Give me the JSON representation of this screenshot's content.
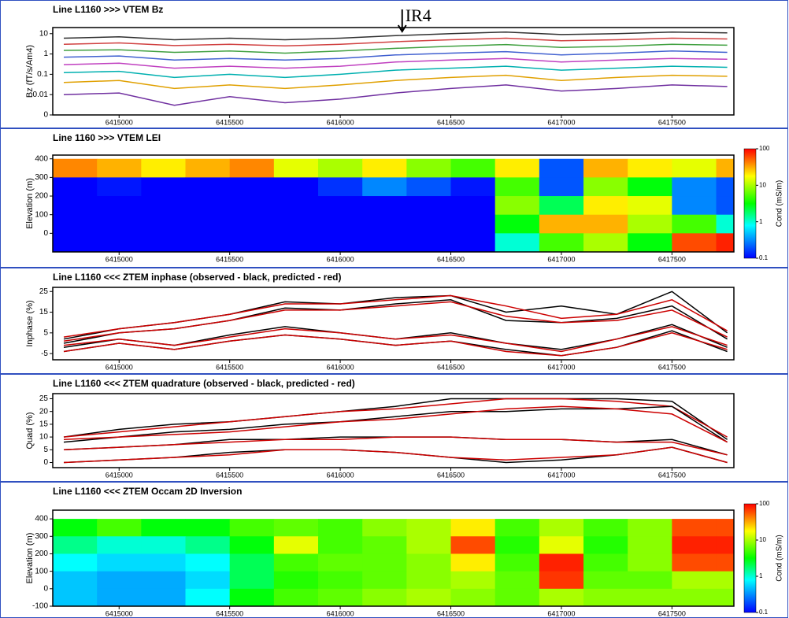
{
  "chart_data": [
    {
      "type": "line",
      "title": "Line L1160 >>> VTEM Bz",
      "y_label": "Bz (fT/s/Am4)",
      "log_y": true,
      "annotations": [
        {
          "text": "IR4",
          "x": 6416280
        }
      ],
      "x": [
        6414750,
        6415000,
        6415250,
        6415500,
        6415750,
        6416000,
        6416250,
        6416500,
        6416750,
        6417000,
        6417250,
        6417500,
        6417750
      ],
      "xlim": [
        6414700,
        6417780
      ],
      "xticks": [
        6415000,
        6415500,
        6416000,
        6416500,
        6417000,
        6417500
      ],
      "ylim": [
        0.001,
        20
      ],
      "yticks": [
        {
          "value": 0.001,
          "label": "0"
        },
        0.01,
        0.1,
        1,
        10
      ],
      "series": [
        {
          "color": "#303030",
          "values": [
            6,
            7,
            5,
            6,
            5,
            6,
            8,
            10,
            12,
            9,
            10,
            12,
            11
          ]
        },
        {
          "color": "#d04040",
          "values": [
            3,
            3.5,
            2.6,
            3,
            2.5,
            3,
            4,
            5,
            6,
            4.5,
            5,
            6,
            5.5
          ]
        },
        {
          "color": "#40a040",
          "values": [
            1.5,
            1.6,
            1.2,
            1.4,
            1.1,
            1.4,
            1.9,
            2.4,
            2.9,
            2.1,
            2.4,
            3,
            2.7
          ]
        },
        {
          "color": "#4060d0",
          "values": [
            0.7,
            0.8,
            0.5,
            0.6,
            0.5,
            0.6,
            0.9,
            1.1,
            1.3,
            0.9,
            1.1,
            1.4,
            1.2
          ]
        },
        {
          "color": "#c040c0",
          "values": [
            0.3,
            0.35,
            0.2,
            0.25,
            0.2,
            0.25,
            0.4,
            0.5,
            0.6,
            0.4,
            0.5,
            0.6,
            0.55
          ]
        },
        {
          "color": "#00b0b0",
          "values": [
            0.12,
            0.14,
            0.07,
            0.1,
            0.07,
            0.1,
            0.16,
            0.2,
            0.25,
            0.16,
            0.2,
            0.25,
            0.22
          ]
        },
        {
          "color": "#e0a000",
          "values": [
            0.04,
            0.05,
            0.02,
            0.03,
            0.02,
            0.03,
            0.05,
            0.07,
            0.09,
            0.05,
            0.07,
            0.09,
            0.08
          ]
        },
        {
          "color": "#7030a0",
          "values": [
            0.01,
            0.012,
            0.003,
            0.008,
            0.004,
            0.006,
            0.012,
            0.02,
            0.03,
            0.015,
            0.02,
            0.03,
            0.025
          ]
        }
      ]
    },
    {
      "type": "heatmap",
      "title": "Line 1160 >>> VTEM LEI",
      "y_label": "Elevation (m)",
      "colorbar_label": "Cond (mS/m)",
      "x": [
        6414800,
        6415000,
        6415200,
        6415400,
        6415600,
        6415800,
        6416000,
        6416200,
        6416400,
        6416600,
        6416800,
        6417000,
        6417200,
        6417400,
        6417600,
        6417800
      ],
      "y": [
        350,
        250,
        150,
        50,
        -50
      ],
      "xlim": [
        6414700,
        6417780
      ],
      "xticks": [
        6415000,
        6415500,
        6416000,
        6416500,
        6417000,
        6417500
      ],
      "ylim": [
        -100,
        420
      ],
      "yticks": [
        0,
        100,
        200,
        300,
        400
      ],
      "clim": [
        0.1,
        100
      ],
      "cticks": [
        0.1,
        1,
        10,
        100
      ],
      "values": [
        [
          40,
          30,
          20,
          30,
          40,
          15,
          10,
          20,
          8,
          5,
          20,
          0.2,
          30,
          20,
          15,
          30
        ],
        [
          0.1,
          0.12,
          0.1,
          0.1,
          0.1,
          0.1,
          0.15,
          0.3,
          0.2,
          0.12,
          5,
          0.2,
          8,
          3,
          0.3,
          0.2
        ],
        [
          0.1,
          0.1,
          0.1,
          0.1,
          0.1,
          0.1,
          0.1,
          0.1,
          0.1,
          0.1,
          8,
          2,
          20,
          15,
          0.3,
          0.2
        ],
        [
          0.1,
          0.1,
          0.1,
          0.1,
          0.1,
          0.1,
          0.1,
          0.1,
          0.1,
          0.1,
          3,
          30,
          30,
          10,
          5,
          1
        ],
        [
          0.1,
          0.1,
          0.1,
          0.1,
          0.1,
          0.1,
          0.1,
          0.1,
          0.1,
          0.1,
          1,
          5,
          10,
          3,
          60,
          80
        ]
      ]
    },
    {
      "type": "line",
      "title": "Line L1160 <<< ZTEM inphase (observed - black, predicted - red)",
      "y_label": "Inphase (%)",
      "x": [
        6414750,
        6415000,
        6415250,
        6415500,
        6415750,
        6416000,
        6416250,
        6416500,
        6416750,
        6417000,
        6417250,
        6417500,
        6417750
      ],
      "xlim": [
        6414700,
        6417780
      ],
      "xticks": [
        6415000,
        6415500,
        6416000,
        6416500,
        6417000,
        6417500
      ],
      "ylim": [
        -8,
        27
      ],
      "yticks": [
        -5,
        5,
        15,
        25
      ],
      "series": [
        {
          "color": "#000000",
          "values": [
            2,
            7,
            10,
            14,
            20,
            19,
            22,
            23,
            15,
            18,
            14,
            25,
            5
          ]
        },
        {
          "color": "#cc0000",
          "values": [
            3,
            7,
            10,
            14,
            19,
            19,
            21,
            23,
            18,
            12,
            14,
            21,
            6
          ]
        },
        {
          "color": "#000000",
          "values": [
            0,
            5,
            7,
            11,
            17,
            16,
            19,
            21,
            11,
            10,
            12,
            18,
            2
          ]
        },
        {
          "color": "#cc0000",
          "values": [
            1,
            5,
            7,
            11,
            16,
            16,
            18,
            20,
            13,
            10,
            11,
            16,
            3
          ]
        },
        {
          "color": "#000000",
          "values": [
            -2,
            2,
            -1,
            4,
            8,
            5,
            2,
            5,
            0,
            -3,
            2,
            9,
            -2
          ]
        },
        {
          "color": "#cc0000",
          "values": [
            -1,
            2,
            -1,
            3,
            7,
            5,
            2,
            4,
            0,
            -4,
            2,
            8,
            -1
          ]
        },
        {
          "color": "#000000",
          "values": [
            -4,
            0,
            -3,
            1,
            4,
            2,
            -1,
            1,
            -3,
            -6,
            -2,
            6,
            -4
          ]
        },
        {
          "color": "#cc0000",
          "values": [
            -4,
            0,
            -3,
            1,
            4,
            2,
            -1,
            1,
            -4,
            -6,
            -2,
            5,
            -3
          ]
        }
      ]
    },
    {
      "type": "line",
      "title": "Line L1160 <<< ZTEM quadrature (observed - black, predicted - red)",
      "y_label": "Quad (%)",
      "x": [
        6414750,
        6415000,
        6415250,
        6415500,
        6415750,
        6416000,
        6416250,
        6416500,
        6416750,
        6417000,
        6417250,
        6417500,
        6417750
      ],
      "xlim": [
        6414700,
        6417780
      ],
      "xticks": [
        6415000,
        6415500,
        6416000,
        6416500,
        6417000,
        6417500
      ],
      "ylim": [
        -2,
        27
      ],
      "yticks": [
        0,
        5,
        10,
        15,
        20,
        25
      ],
      "series": [
        {
          "color": "#000000",
          "values": [
            10,
            13,
            15,
            16,
            18,
            20,
            22,
            25,
            25,
            25,
            25,
            24,
            9
          ]
        },
        {
          "color": "#cc0000",
          "values": [
            10,
            12,
            14,
            16,
            18,
            20,
            21,
            23,
            25,
            25,
            24,
            22,
            10
          ]
        },
        {
          "color": "#000000",
          "values": [
            8,
            10,
            12,
            13,
            15,
            16,
            18,
            20,
            20,
            21,
            21,
            22,
            8
          ]
        },
        {
          "color": "#cc0000",
          "values": [
            9,
            10,
            11,
            12,
            14,
            16,
            17,
            19,
            21,
            22,
            21,
            19,
            8
          ]
        },
        {
          "color": "#000000",
          "values": [
            5,
            6,
            7,
            9,
            9,
            10,
            10,
            10,
            9,
            9,
            8,
            9,
            3
          ]
        },
        {
          "color": "#cc0000",
          "values": [
            5,
            6,
            7,
            8,
            9,
            9,
            10,
            10,
            9,
            9,
            8,
            8,
            3
          ]
        },
        {
          "color": "#000000",
          "values": [
            0,
            1,
            2,
            4,
            5,
            5,
            4,
            2,
            0,
            1,
            3,
            6,
            0
          ]
        },
        {
          "color": "#cc0000",
          "values": [
            0,
            1,
            2,
            3,
            5,
            5,
            4,
            2,
            1,
            2,
            3,
            6,
            0
          ]
        }
      ]
    },
    {
      "type": "heatmap",
      "title": "Line L1160 <<< ZTEM Occam 2D Inversion",
      "y_label": "Elevation (m)",
      "colorbar_label": "Cond (mS/m)",
      "x": [
        6414800,
        6415000,
        6415200,
        6415400,
        6415600,
        6415800,
        6416000,
        6416200,
        6416400,
        6416600,
        6416800,
        6417000,
        6417200,
        6417400,
        6417600,
        6417800
      ],
      "y": [
        350,
        250,
        150,
        50,
        -50
      ],
      "xlim": [
        6414700,
        6417780
      ],
      "xticks": [
        6415000,
        6415500,
        6416000,
        6416500,
        6417000,
        6417500
      ],
      "ylim": [
        -100,
        450
      ],
      "yticks": [
        -100,
        0,
        100,
        200,
        300,
        400
      ],
      "clim": [
        0.1,
        100
      ],
      "cticks": [
        0.1,
        1,
        10,
        100
      ],
      "values": [
        [
          3,
          5,
          3,
          3,
          5,
          6,
          5,
          8,
          10,
          20,
          5,
          10,
          5,
          8,
          60,
          60
        ],
        [
          1.5,
          1,
          1,
          1.5,
          3,
          15,
          5,
          6,
          10,
          60,
          4,
          15,
          4,
          8,
          80,
          80
        ],
        [
          0.8,
          0.6,
          0.6,
          0.8,
          2,
          5,
          6,
          6,
          8,
          20,
          5,
          80,
          5,
          8,
          60,
          60
        ],
        [
          0.5,
          0.4,
          0.4,
          0.6,
          2,
          4,
          5,
          6,
          8,
          10,
          6,
          70,
          6,
          6,
          10,
          10
        ],
        [
          0.5,
          0.4,
          0.4,
          0.8,
          3,
          5,
          6,
          8,
          10,
          8,
          6,
          10,
          8,
          8,
          8,
          8
        ]
      ]
    }
  ]
}
